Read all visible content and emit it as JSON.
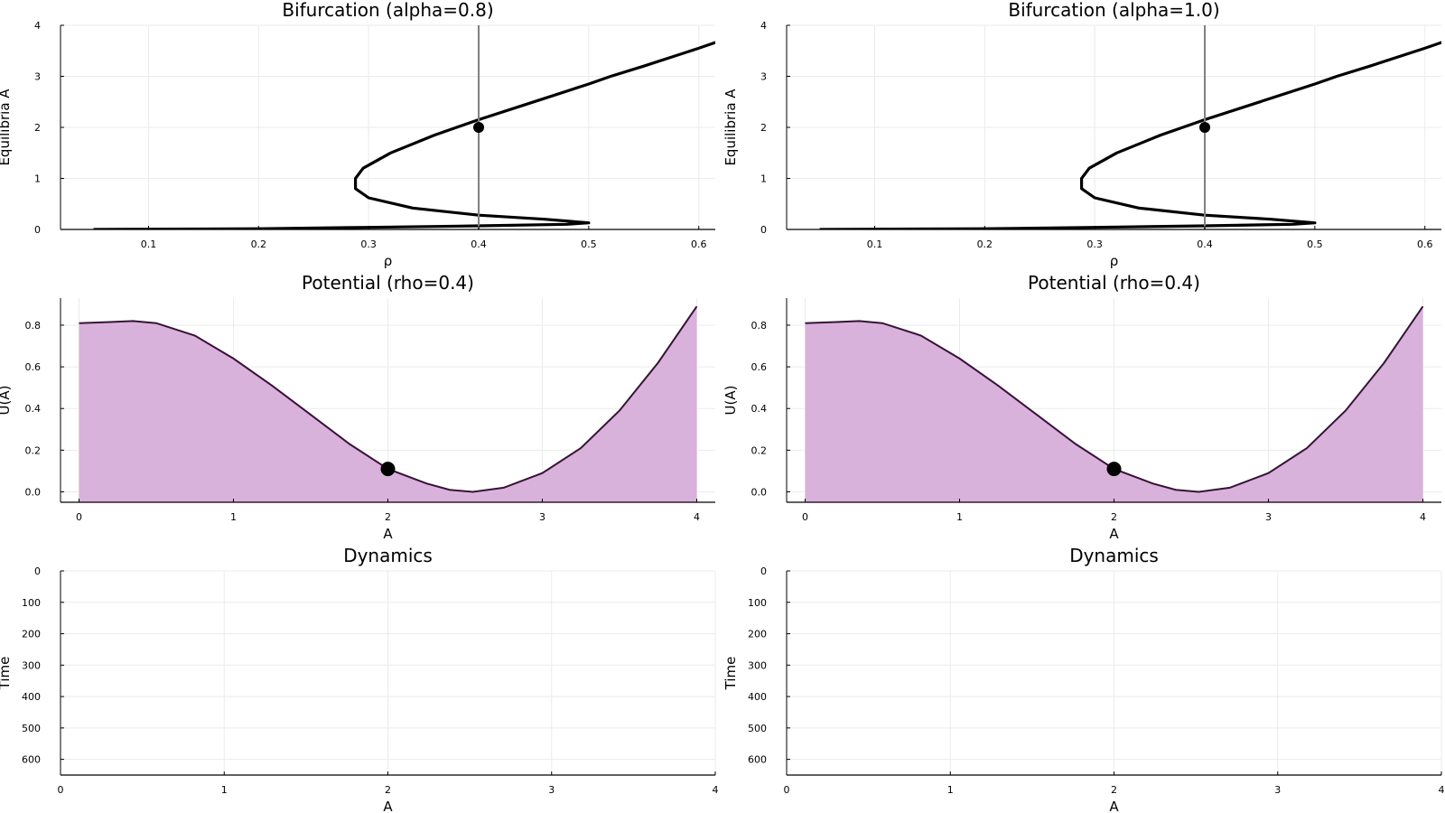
{
  "figure": {
    "background": "#ffffff",
    "grid_color": "#ebebeb",
    "axis_color": "#000000"
  },
  "chart_data": [
    {
      "id": "bif-left",
      "type": "line",
      "title": "Bifurcation (alpha=0.8)",
      "xlabel": "ρ",
      "ylabel": "Equilibria A",
      "xlim": [
        0.02,
        0.615
      ],
      "ylim": [
        0,
        4
      ],
      "xticks": [
        0.1,
        0.2,
        0.3,
        0.4,
        0.5,
        0.6
      ],
      "xtick_labels": [
        "0.1",
        "0.2",
        "0.3",
        "0.4",
        "0.5",
        "0.6"
      ],
      "yticks": [
        0,
        1,
        2,
        3,
        4
      ],
      "ytick_labels": [
        "0",
        "1",
        "2",
        "3",
        "4"
      ],
      "grid": true,
      "curve": {
        "color": "#000000",
        "points": [
          [
            0.05,
            0.0
          ],
          [
            0.1,
            0.005
          ],
          [
            0.2,
            0.015
          ],
          [
            0.3,
            0.04
          ],
          [
            0.4,
            0.07
          ],
          [
            0.48,
            0.1
          ],
          [
            0.5,
            0.13
          ],
          [
            0.46,
            0.2
          ],
          [
            0.4,
            0.28
          ],
          [
            0.34,
            0.42
          ],
          [
            0.3,
            0.62
          ],
          [
            0.288,
            0.8
          ],
          [
            0.288,
            1.0
          ],
          [
            0.295,
            1.2
          ],
          [
            0.32,
            1.5
          ],
          [
            0.36,
            1.85
          ],
          [
            0.4,
            2.15
          ],
          [
            0.45,
            2.5
          ],
          [
            0.5,
            2.85
          ],
          [
            0.52,
            3.0
          ],
          [
            0.55,
            3.2
          ],
          [
            0.6,
            3.55
          ],
          [
            0.66,
            4.0
          ]
        ]
      },
      "vline": {
        "x": 0.4,
        "color": "#808080"
      },
      "marker": {
        "x": 0.4,
        "y": 2.0,
        "color": "#000000"
      }
    },
    {
      "id": "bif-right",
      "type": "line",
      "title": "Bifurcation (alpha=1.0)",
      "xlabel": "ρ",
      "ylabel": "Equilibria A",
      "xlim": [
        0.02,
        0.615
      ],
      "ylim": [
        0,
        4
      ],
      "xticks": [
        0.1,
        0.2,
        0.3,
        0.4,
        0.5,
        0.6
      ],
      "xtick_labels": [
        "0.1",
        "0.2",
        "0.3",
        "0.4",
        "0.5",
        "0.6"
      ],
      "yticks": [
        0,
        1,
        2,
        3,
        4
      ],
      "ytick_labels": [
        "0",
        "1",
        "2",
        "3",
        "4"
      ],
      "grid": true,
      "curve": {
        "color": "#000000",
        "points": [
          [
            0.05,
            0.0
          ],
          [
            0.1,
            0.005
          ],
          [
            0.2,
            0.015
          ],
          [
            0.3,
            0.04
          ],
          [
            0.4,
            0.07
          ],
          [
            0.48,
            0.1
          ],
          [
            0.5,
            0.13
          ],
          [
            0.46,
            0.2
          ],
          [
            0.4,
            0.28
          ],
          [
            0.34,
            0.42
          ],
          [
            0.3,
            0.62
          ],
          [
            0.288,
            0.8
          ],
          [
            0.288,
            1.0
          ],
          [
            0.295,
            1.2
          ],
          [
            0.32,
            1.5
          ],
          [
            0.36,
            1.85
          ],
          [
            0.4,
            2.15
          ],
          [
            0.45,
            2.5
          ],
          [
            0.5,
            2.85
          ],
          [
            0.52,
            3.0
          ],
          [
            0.55,
            3.2
          ],
          [
            0.6,
            3.55
          ],
          [
            0.66,
            4.0
          ]
        ]
      },
      "vline": {
        "x": 0.4,
        "color": "#808080"
      },
      "marker": {
        "x": 0.4,
        "y": 2.0,
        "color": "#000000"
      }
    },
    {
      "id": "pot-left",
      "type": "area",
      "title": "Potential (rho=0.4)",
      "xlabel": "A",
      "ylabel": "U(A)",
      "xlim": [
        -0.12,
        4.12
      ],
      "ylim": [
        -0.05,
        0.93
      ],
      "xticks": [
        0,
        1,
        2,
        3,
        4
      ],
      "xtick_labels": [
        "0",
        "1",
        "2",
        "3",
        "4"
      ],
      "yticks": [
        0.0,
        0.2,
        0.4,
        0.6,
        0.8
      ],
      "ytick_labels": [
        "0.0",
        "0.2",
        "0.4",
        "0.6",
        "0.8"
      ],
      "grid": true,
      "curve": {
        "line_color": "#3b0f3b",
        "fill_color": "#d8b2da",
        "points": [
          [
            0,
            0.81
          ],
          [
            0.2,
            0.815
          ],
          [
            0.35,
            0.82
          ],
          [
            0.5,
            0.81
          ],
          [
            0.75,
            0.75
          ],
          [
            1.0,
            0.64
          ],
          [
            1.25,
            0.51
          ],
          [
            1.5,
            0.37
          ],
          [
            1.75,
            0.23
          ],
          [
            2.0,
            0.11
          ],
          [
            2.25,
            0.04
          ],
          [
            2.4,
            0.01
          ],
          [
            2.55,
            0.0
          ],
          [
            2.75,
            0.02
          ],
          [
            3.0,
            0.09
          ],
          [
            3.25,
            0.21
          ],
          [
            3.5,
            0.39
          ],
          [
            3.75,
            0.62
          ],
          [
            4.0,
            0.89
          ]
        ]
      },
      "marker": {
        "x": 2.0,
        "y": 0.11,
        "color": "#000000"
      }
    },
    {
      "id": "pot-right",
      "type": "area",
      "title": "Potential (rho=0.4)",
      "xlabel": "A",
      "ylabel": "U(A)",
      "xlim": [
        -0.12,
        4.12
      ],
      "ylim": [
        -0.05,
        0.93
      ],
      "xticks": [
        0,
        1,
        2,
        3,
        4
      ],
      "xtick_labels": [
        "0",
        "1",
        "2",
        "3",
        "4"
      ],
      "yticks": [
        0.0,
        0.2,
        0.4,
        0.6,
        0.8
      ],
      "ytick_labels": [
        "0.0",
        "0.2",
        "0.4",
        "0.6",
        "0.8"
      ],
      "grid": true,
      "curve": {
        "line_color": "#3b0f3b",
        "fill_color": "#d8b2da",
        "points": [
          [
            0,
            0.81
          ],
          [
            0.2,
            0.815
          ],
          [
            0.35,
            0.82
          ],
          [
            0.5,
            0.81
          ],
          [
            0.75,
            0.75
          ],
          [
            1.0,
            0.64
          ],
          [
            1.25,
            0.51
          ],
          [
            1.5,
            0.37
          ],
          [
            1.75,
            0.23
          ],
          [
            2.0,
            0.11
          ],
          [
            2.25,
            0.04
          ],
          [
            2.4,
            0.01
          ],
          [
            2.55,
            0.0
          ],
          [
            2.75,
            0.02
          ],
          [
            3.0,
            0.09
          ],
          [
            3.25,
            0.21
          ],
          [
            3.5,
            0.39
          ],
          [
            3.75,
            0.62
          ],
          [
            4.0,
            0.89
          ]
        ]
      },
      "marker": {
        "x": 2.0,
        "y": 0.11,
        "color": "#000000"
      }
    },
    {
      "id": "dyn-left",
      "type": "line",
      "title": "Dynamics",
      "xlabel": "A",
      "ylabel": "Time",
      "xlim": [
        0,
        4
      ],
      "ylim": [
        0,
        650
      ],
      "y_inverted": true,
      "xticks": [
        0,
        1,
        2,
        3,
        4
      ],
      "xtick_labels": [
        "0",
        "1",
        "2",
        "3",
        "4"
      ],
      "yticks": [
        0,
        100,
        200,
        300,
        400,
        500,
        600
      ],
      "ytick_labels": [
        "0",
        "100",
        "200",
        "300",
        "400",
        "500",
        "600"
      ],
      "grid": true
    },
    {
      "id": "dyn-right",
      "type": "line",
      "title": "Dynamics",
      "xlabel": "A",
      "ylabel": "Time",
      "xlim": [
        0,
        4
      ],
      "ylim": [
        0,
        650
      ],
      "y_inverted": true,
      "xticks": [
        0,
        1,
        2,
        3,
        4
      ],
      "xtick_labels": [
        "0",
        "1",
        "2",
        "3",
        "4"
      ],
      "yticks": [
        0,
        100,
        200,
        300,
        400,
        500,
        600
      ],
      "ytick_labels": [
        "0",
        "100",
        "200",
        "300",
        "400",
        "500",
        "600"
      ],
      "grid": true
    }
  ]
}
